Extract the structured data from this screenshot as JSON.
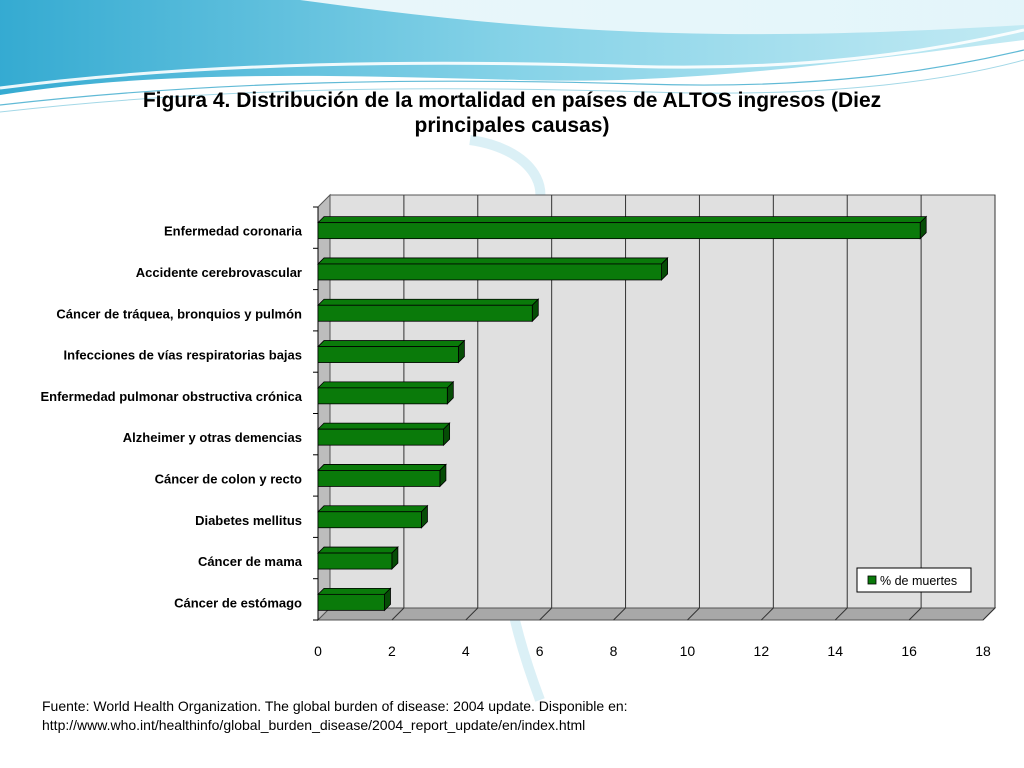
{
  "slide": {
    "title": "Figura 4. Distribución de la mortalidad en países de ALTOS ingresos (Diez principales causas)",
    "source_line1": "Fuente: World Health Organization. The global burden of disease: 2004 update. Disponible en:",
    "source_line2": "http://www.who.int/healthinfo/global_burden_disease/2004_report_update/en/index.html"
  },
  "colors": {
    "bar_fill": "#0a7a0a",
    "bar_dark": "#064d06",
    "plot_back": "#e0e0e0",
    "plot_floor": "#a8a8a8",
    "header_wave": "#4fb8d8"
  },
  "chart_data": {
    "type": "bar",
    "orientation": "horizontal",
    "categories": [
      "Enfermedad coronaria",
      "Accidente cerebrovascular",
      "Cáncer de tráquea, bronquios  y pulmón",
      "Infecciones de vías respiratorias bajas",
      "Enfermedad pulmonar obstructiva crónica",
      "Alzheimer y otras demencias",
      "Cáncer de colon y recto",
      "Diabetes mellitus",
      "Cáncer de mama",
      "Cáncer de estómago"
    ],
    "series": [
      {
        "name": "% de muertes",
        "values": [
          16.3,
          9.3,
          5.8,
          3.8,
          3.5,
          3.4,
          3.3,
          2.8,
          2.0,
          1.8
        ]
      }
    ],
    "xlim": [
      0,
      18
    ],
    "xticks": [
      "0",
      "2",
      "4",
      "6",
      "8",
      "10",
      "12",
      "14",
      "16",
      "18"
    ],
    "grid": true,
    "legend_position": "bottom-right",
    "style": "3d"
  }
}
